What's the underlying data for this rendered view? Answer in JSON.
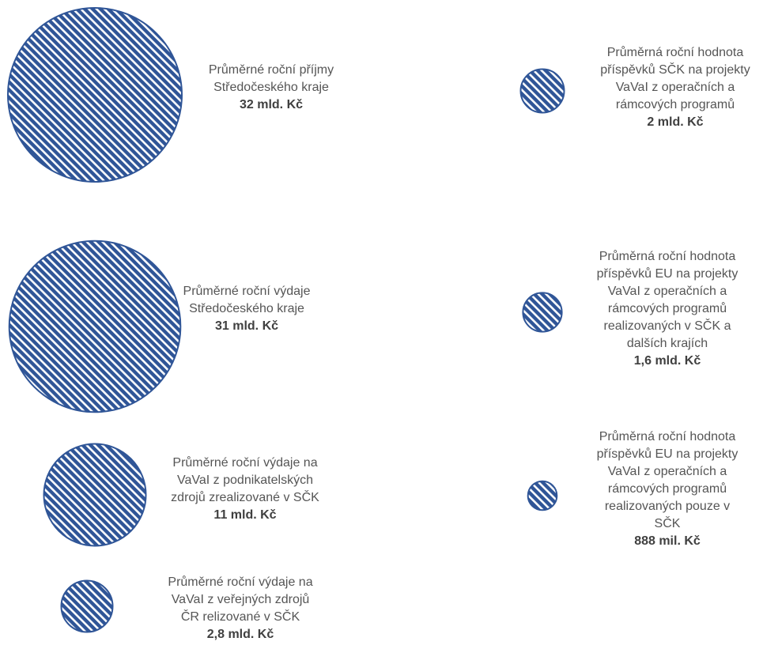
{
  "colors": {
    "circle_fill": "#2f5597",
    "circle_stripe": "#ffffff",
    "text": "#555555",
    "value_text": "#404040"
  },
  "chart_data": {
    "type": "bubble",
    "unit": "mld. Kč",
    "items": [
      {
        "lines": [
          "Průměrné roční příjmy",
          "Středočeského kraje"
        ],
        "value_label": "32 mld. Kč",
        "value": 32
      },
      {
        "lines": [
          "Průměrné roční výdaje",
          "Středočeského kraje"
        ],
        "value_label": "31 mld. Kč",
        "value": 31
      },
      {
        "lines": [
          "Průměrné roční výdaje na",
          "VaVaI z podnikatelských",
          "zdrojů zrealizované v SČK"
        ],
        "value_label": "11 mld. Kč",
        "value": 11
      },
      {
        "lines": [
          "Průměrné roční výdaje na",
          "VaVaI z veřejných zdrojů",
          "ČR relizované v SČK"
        ],
        "value_label": "2,8 mld. Kč",
        "value": 2.8
      },
      {
        "lines": [
          "Průměrná roční hodnota",
          "příspěvků SČK na projekty",
          "VaVaI z operačních a",
          "rámcových programů"
        ],
        "value_label": "2 mld. Kč",
        "value": 2
      },
      {
        "lines": [
          "Průměrná roční hodnota",
          "příspěvků EU na projekty",
          "VaVaI z operačních a",
          "rámcových programů",
          "realizovaných v SČK a",
          "dalších krajích"
        ],
        "value_label": "1,6 mld. Kč",
        "value": 1.6
      },
      {
        "lines": [
          "Průměrná roční hodnota",
          "příspěvků EU na projekty",
          "VaVaI z operačních a",
          "rámcových programů",
          "realizovaných pouze v",
          "SČK"
        ],
        "value_label": "888 mil. Kč",
        "value": 0.888
      }
    ]
  }
}
